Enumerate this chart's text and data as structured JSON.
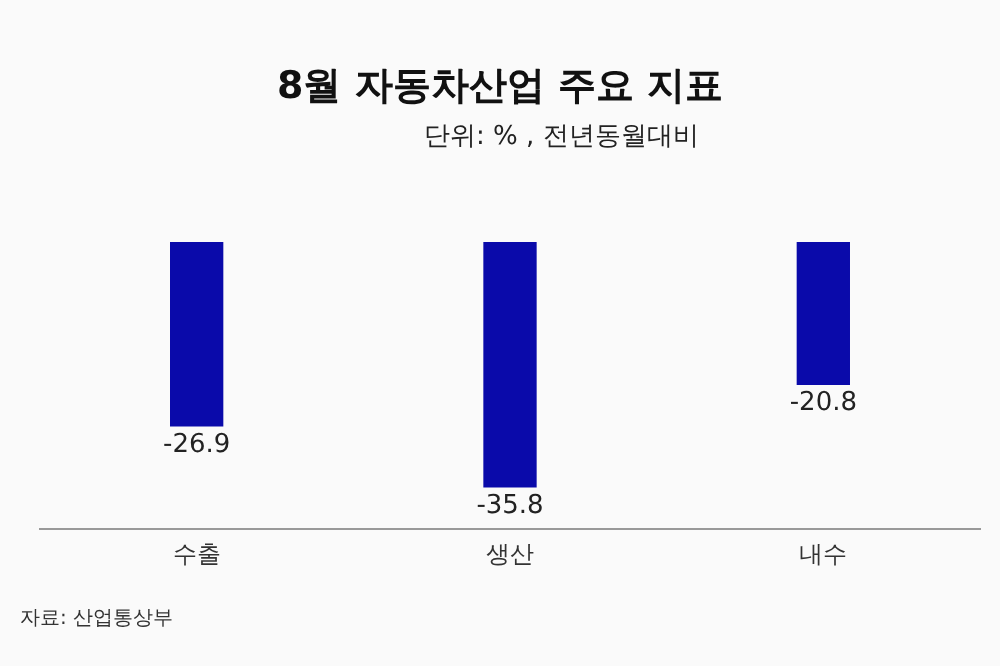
{
  "chart_data": {
    "type": "bar",
    "title": "8월 자동차산업 주요 지표",
    "subtitle": "단위: % , 전년동월대비",
    "categories": [
      "수출",
      "생산",
      "내수"
    ],
    "values": [
      -26.9,
      -35.8,
      -20.8
    ],
    "color": "#0a0aaa",
    "ylim": [
      -42,
      0
    ],
    "tick_labels": "x",
    "grid": false,
    "legend": false,
    "data_labels": true,
    "annotations": [
      "자료: 산업통상부"
    ]
  }
}
